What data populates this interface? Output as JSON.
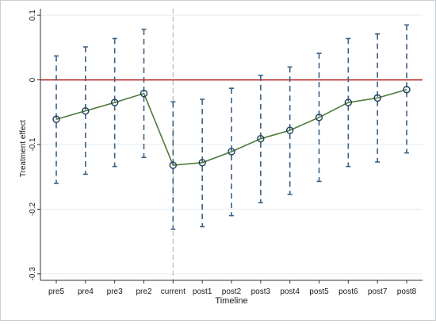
{
  "chart_data": {
    "type": "line",
    "title": "",
    "xlabel": "Timeline",
    "ylabel": "Treatment effect",
    "categories": [
      "pre5",
      "pre4",
      "pre3",
      "pre2",
      "current",
      "post1",
      "post2",
      "post3",
      "post4",
      "post5",
      "post6",
      "post7",
      "post8"
    ],
    "series": [
      {
        "values": [
          -0.061,
          -0.048,
          -0.035,
          -0.021,
          -0.132,
          -0.128,
          -0.111,
          -0.091,
          -0.078,
          -0.058,
          -0.035,
          -0.028,
          -0.015
        ],
        "ci_upper": [
          0.037,
          0.051,
          0.064,
          0.078,
          -0.034,
          -0.03,
          -0.013,
          0.007,
          0.02,
          0.041,
          0.064,
          0.071,
          0.085
        ],
        "ci_lower": [
          -0.16,
          -0.146,
          -0.134,
          -0.12,
          -0.231,
          -0.227,
          -0.21,
          -0.19,
          -0.177,
          -0.157,
          -0.134,
          -0.127,
          -0.113
        ]
      }
    ],
    "yticks": [
      0.1,
      0,
      -0.1,
      -0.2,
      -0.3
    ],
    "ytick_labels": [
      "0.1",
      "0",
      "-0.1",
      "-0.2",
      "-0.3"
    ],
    "ylim": [
      -0.31,
      0.11
    ],
    "reference_line_y": 0,
    "reference_line_x": "current",
    "grid": "horizontal",
    "colors": {
      "line": "#4e7a3a",
      "marker_edge": "#1f4060",
      "ci": "#3d5f82",
      "zero_line": "#b22222",
      "vline": "#bbbbbb",
      "grid": "#e6ebef",
      "axis": "#333333"
    }
  }
}
